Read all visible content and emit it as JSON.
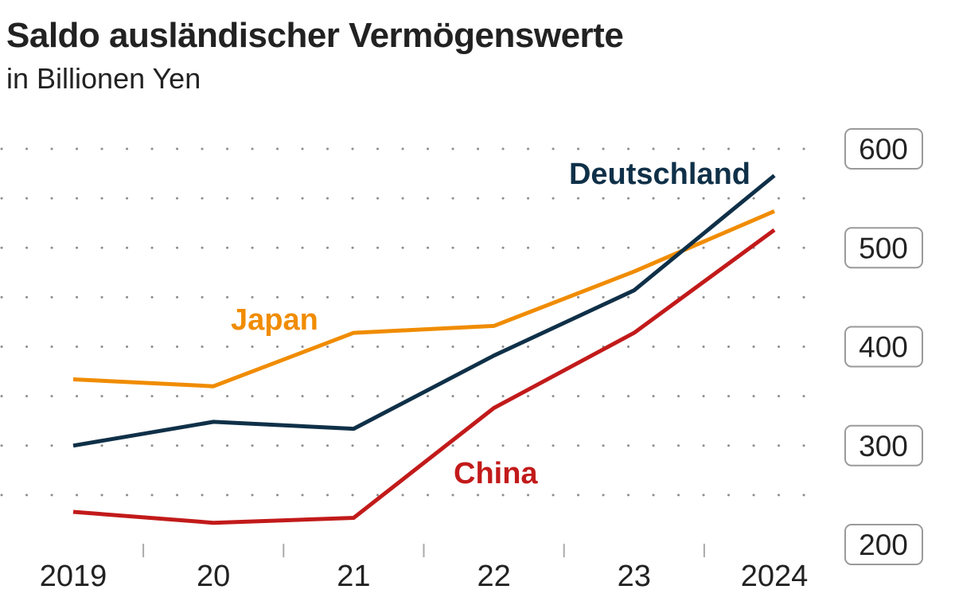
{
  "chart_data": {
    "type": "line",
    "title": "Saldo ausländischer Vermögenswerte",
    "subtitle": "in Billionen Yen",
    "x": [
      "2019",
      "20",
      "21",
      "22",
      "23",
      "2024"
    ],
    "ylim": [
      200,
      600
    ],
    "yticks": [
      200,
      300,
      400,
      500,
      600
    ],
    "grid": "dotted",
    "series": [
      {
        "name": "Japan",
        "color": "#f08c00",
        "values": [
          367,
          360,
          414,
          421,
          476,
          537
        ]
      },
      {
        "name": "Deutschland",
        "color": "#0f3048",
        "values": [
          300,
          324,
          317,
          391,
          457,
          573
        ]
      },
      {
        "name": "China",
        "color": "#c21a1a",
        "values": [
          233,
          222,
          227,
          338,
          414,
          518
        ]
      }
    ]
  }
}
